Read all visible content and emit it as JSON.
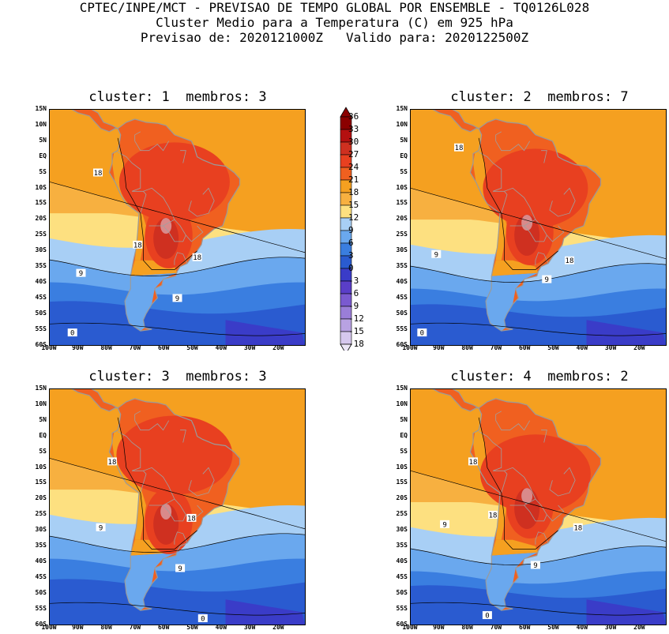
{
  "header": {
    "line1": "CPTEC/INPE/MCT - PREVISAO DE TEMPO GLOBAL POR ENSEMBLE - TQ0126L028",
    "line2": "Cluster Medio para a Temperatura (C) em 925 hPa",
    "line3": "Previsao de: 2020121000Z   Valido para: 2020122500Z"
  },
  "panels": [
    {
      "title": "cluster: 1  membros: 3"
    },
    {
      "title": "cluster: 2  membros: 7"
    },
    {
      "title": "cluster: 3  membros: 3"
    },
    {
      "title": "cluster: 4  membros: 2"
    }
  ],
  "lat_labels": [
    "15N",
    "10N",
    "5N",
    "EQ",
    "5S",
    "10S",
    "15S",
    "20S",
    "25S",
    "30S",
    "35S",
    "40S",
    "45S",
    "50S",
    "55S",
    "60S"
  ],
  "lon_labels": [
    "100W",
    "90W",
    "80W",
    "70W",
    "60W",
    "50W",
    "40W",
    "30W",
    "20W"
  ],
  "colorbar": {
    "labels": [
      "36",
      "33",
      "30",
      "27",
      "24",
      "21",
      "18",
      "15",
      "12",
      "9",
      "6",
      "3",
      "0",
      "-3",
      "-6",
      "-9",
      "-12",
      "-15",
      "-18"
    ],
    "colors": [
      "#8b0000",
      "#b41010",
      "#cf3020",
      "#e84020",
      "#f06020",
      "#f5a020",
      "#f7b040",
      "#fde080",
      "#a8cff5",
      "#6aa8ee",
      "#3a7ee0",
      "#2a5bd0",
      "#3a3cc8",
      "#5a3ec8",
      "#7a5ad0",
      "#9a7ed8",
      "#b8a2e2",
      "#d6c8ee"
    ]
  },
  "contour_labels": {
    "p1": [
      "18",
      "18",
      "18",
      "9",
      "9",
      "0"
    ],
    "p2": [
      "18",
      "9",
      "18",
      "9",
      "0"
    ],
    "p3": [
      "18",
      "18",
      "9",
      "9",
      "0"
    ],
    "p4": [
      "18",
      "18",
      "9",
      "9",
      "18",
      "0"
    ]
  }
}
